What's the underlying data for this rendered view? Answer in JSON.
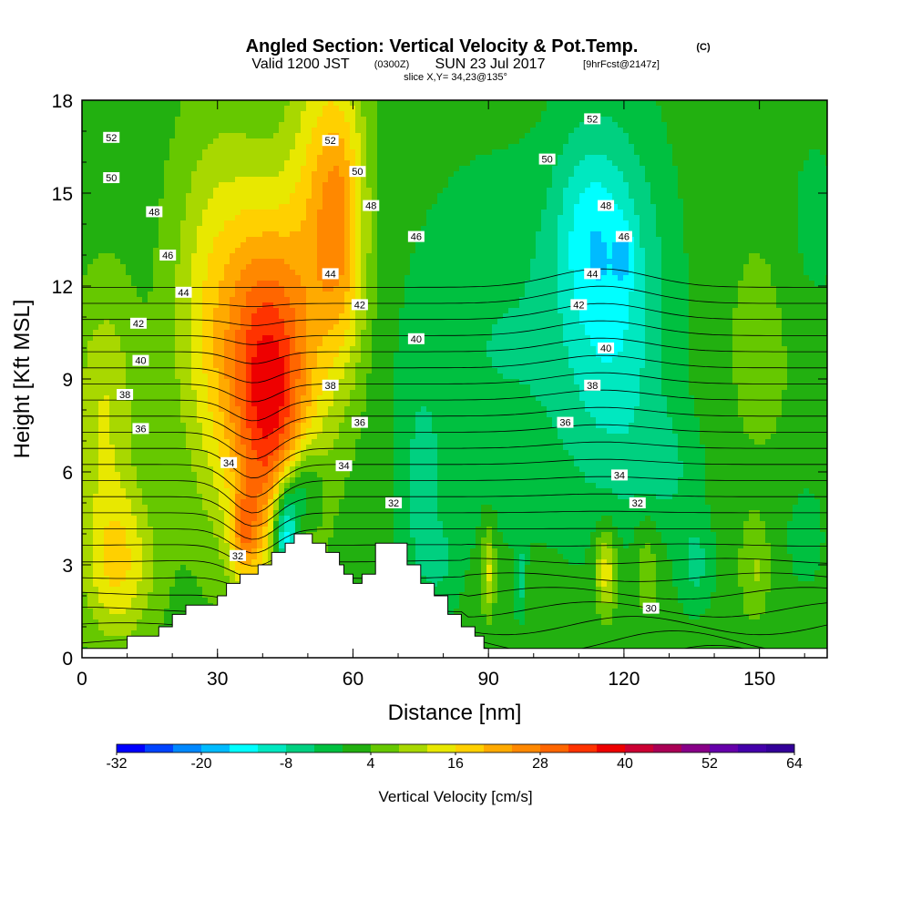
{
  "header": {
    "title": "Angled Section: Vertical Velocity & Pot.Temp.",
    "title_unit": "(C)",
    "valid_prefix": "Valid 1200 JST",
    "valid_utc": "(0300Z)",
    "valid_date": "SUN 23 Jul 2017",
    "forecast_tag": "[9hrFcst@2147z]",
    "slice": "slice X,Y= 34,23@135°"
  },
  "chart_data": {
    "type": "heatmap",
    "xlabel": "Distance [nm]",
    "ylabel": "Height [Kft MSL]",
    "xlim": [
      0,
      165
    ],
    "ylim": [
      0,
      18
    ],
    "x_ticks": [
      0,
      30,
      60,
      90,
      120,
      150
    ],
    "y_ticks": [
      0,
      3,
      6,
      9,
      12,
      15,
      18
    ],
    "colorbar": {
      "title": "Vertical Velocity [cm/s]",
      "min": -32,
      "max": 64,
      "step": 4,
      "tick_labels": [
        -32,
        -20,
        -8,
        4,
        16,
        28,
        40,
        52,
        64
      ],
      "colors": [
        "#0000ff",
        "#0044ff",
        "#0088ff",
        "#00bbff",
        "#00ffff",
        "#00e8c0",
        "#00d080",
        "#00c040",
        "#22b010",
        "#66c800",
        "#a8d800",
        "#e8e800",
        "#ffd000",
        "#ffaa00",
        "#ff8800",
        "#ff6600",
        "#ff3300",
        "#ee0000",
        "#cc0033",
        "#aa0055",
        "#880088",
        "#6600aa",
        "#4400aa",
        "#330099"
      ]
    },
    "terrain_top_kft": [
      [
        0,
        0.3
      ],
      [
        10,
        0.3
      ],
      [
        10,
        0.7
      ],
      [
        17,
        0.7
      ],
      [
        17,
        1.0
      ],
      [
        20,
        1.0
      ],
      [
        20,
        1.4
      ],
      [
        23,
        1.4
      ],
      [
        23,
        1.7
      ],
      [
        30,
        1.7
      ],
      [
        30,
        2.0
      ],
      [
        32,
        2.0
      ],
      [
        32,
        2.4
      ],
      [
        35,
        2.4
      ],
      [
        35,
        2.7
      ],
      [
        39,
        2.7
      ],
      [
        39,
        3.0
      ],
      [
        42,
        3.0
      ],
      [
        42,
        3.4
      ],
      [
        45,
        3.4
      ],
      [
        45,
        3.7
      ],
      [
        47,
        3.7
      ],
      [
        47,
        4.0
      ],
      [
        51,
        4.0
      ],
      [
        51,
        3.7
      ],
      [
        54,
        3.7
      ],
      [
        54,
        3.4
      ],
      [
        57,
        3.4
      ],
      [
        57,
        3.0
      ],
      [
        58,
        3.0
      ],
      [
        58,
        2.7
      ],
      [
        60,
        2.7
      ],
      [
        60,
        2.4
      ],
      [
        62,
        2.4
      ],
      [
        62,
        2.7
      ],
      [
        65,
        2.7
      ],
      [
        65,
        3.7
      ],
      [
        72,
        3.7
      ],
      [
        72,
        3.0
      ],
      [
        75,
        3.0
      ],
      [
        75,
        2.4
      ],
      [
        78,
        2.4
      ],
      [
        78,
        2.0
      ],
      [
        81,
        2.0
      ],
      [
        81,
        1.4
      ],
      [
        84,
        1.4
      ],
      [
        84,
        1.0
      ],
      [
        87,
        1.0
      ],
      [
        87,
        0.7
      ],
      [
        89,
        0.7
      ],
      [
        89,
        0.3
      ],
      [
        165,
        0.3
      ]
    ],
    "w_features": [
      {
        "x": 42,
        "y": 8.5,
        "sx": 9,
        "sy": 5.5,
        "w": 34
      },
      {
        "x": 30,
        "y": 11,
        "sx": 10,
        "sy": 6,
        "w": 14
      },
      {
        "x": 57,
        "y": 14,
        "sx": 6,
        "sy": 5,
        "w": 22
      },
      {
        "x": 50,
        "y": 15,
        "sx": 6,
        "sy": 6,
        "w": 8
      },
      {
        "x": 8,
        "y": 3,
        "sx": 8,
        "sy": 2.5,
        "w": 14
      },
      {
        "x": 5,
        "y": 8,
        "sx": 7,
        "sy": 4,
        "w": 10
      },
      {
        "x": 36,
        "y": 4,
        "sx": 3,
        "sy": 1.5,
        "w": 14
      },
      {
        "x": 45,
        "y": 4,
        "sx": 3,
        "sy": 1.8,
        "w": -28
      },
      {
        "x": 49,
        "y": 5.5,
        "sx": 4,
        "sy": 1.5,
        "w": -14
      },
      {
        "x": 118,
        "y": 11,
        "sx": 12,
        "sy": 6,
        "w": -13
      },
      {
        "x": 112,
        "y": 14,
        "sx": 8,
        "sy": 3,
        "w": -8
      },
      {
        "x": 120,
        "y": 13,
        "sx": 2,
        "sy": 1,
        "w": -6
      },
      {
        "x": 92,
        "y": 10,
        "sx": 20,
        "sy": 6,
        "w": -6
      },
      {
        "x": 75,
        "y": 5,
        "sx": 5,
        "sy": 4,
        "w": -6
      },
      {
        "x": 90,
        "y": 2.8,
        "sx": 1.5,
        "sy": 1.4,
        "w": 12
      },
      {
        "x": 97,
        "y": 2.5,
        "sx": 1,
        "sy": 1.2,
        "w": -8
      },
      {
        "x": 116,
        "y": 2.8,
        "sx": 2.5,
        "sy": 1.4,
        "w": 14
      },
      {
        "x": 125,
        "y": 3,
        "sx": 3,
        "sy": 1.8,
        "w": 6
      },
      {
        "x": 136,
        "y": 3,
        "sx": 4,
        "sy": 1.5,
        "w": -7
      },
      {
        "x": 149,
        "y": 2.8,
        "sx": 3,
        "sy": 1.5,
        "w": 6
      },
      {
        "x": 160,
        "y": 4,
        "sx": 5,
        "sy": 2,
        "w": -4
      },
      {
        "x": 130,
        "y": 6,
        "sx": 8,
        "sy": 2,
        "w": -5
      },
      {
        "x": 150,
        "y": 10,
        "sx": 10,
        "sy": 5,
        "w": 3
      },
      {
        "x": 80,
        "y": 3,
        "sx": 4,
        "sy": 1.5,
        "w": -4
      },
      {
        "x": 162,
        "y": 14,
        "sx": 6,
        "sy": 3,
        "w": -4
      }
    ],
    "w_background": 2,
    "theta_levels": [
      30,
      31,
      32,
      33,
      34,
      35,
      36,
      37,
      38,
      39,
      40,
      41,
      42,
      43,
      44,
      45,
      46,
      47,
      48,
      49,
      50,
      51,
      52,
      53
    ],
    "theta_labels": [
      {
        "text": "52",
        "x": 6.5,
        "y": 16.8
      },
      {
        "text": "50",
        "x": 6.5,
        "y": 15.5
      },
      {
        "text": "48",
        "x": 16,
        "y": 14.4
      },
      {
        "text": "46",
        "x": 19,
        "y": 13.0
      },
      {
        "text": "44",
        "x": 22.5,
        "y": 11.8
      },
      {
        "text": "42",
        "x": 12.5,
        "y": 10.8
      },
      {
        "text": "40",
        "x": 13,
        "y": 9.6
      },
      {
        "text": "38",
        "x": 9.5,
        "y": 8.5
      },
      {
        "text": "36",
        "x": 13,
        "y": 7.4
      },
      {
        "text": "34",
        "x": 32.5,
        "y": 6.3
      },
      {
        "text": "32",
        "x": 34.5,
        "y": 3.3
      },
      {
        "text": "52",
        "x": 55,
        "y": 16.7
      },
      {
        "text": "50",
        "x": 61,
        "y": 15.7
      },
      {
        "text": "48",
        "x": 64,
        "y": 14.6
      },
      {
        "text": "46",
        "x": 74,
        "y": 13.6
      },
      {
        "text": "44",
        "x": 55,
        "y": 12.4
      },
      {
        "text": "42",
        "x": 61.5,
        "y": 11.4
      },
      {
        "text": "40",
        "x": 74,
        "y": 10.3
      },
      {
        "text": "38",
        "x": 55,
        "y": 8.8
      },
      {
        "text": "36",
        "x": 61.5,
        "y": 7.6
      },
      {
        "text": "34",
        "x": 58,
        "y": 6.2
      },
      {
        "text": "32",
        "x": 69,
        "y": 5.0
      },
      {
        "text": "52",
        "x": 113,
        "y": 17.4
      },
      {
        "text": "50",
        "x": 103,
        "y": 16.1
      },
      {
        "text": "48",
        "x": 116,
        "y": 14.6
      },
      {
        "text": "46",
        "x": 120,
        "y": 13.6
      },
      {
        "text": "44",
        "x": 113,
        "y": 12.4
      },
      {
        "text": "42",
        "x": 110,
        "y": 11.4
      },
      {
        "text": "40",
        "x": 116,
        "y": 10.0
      },
      {
        "text": "38",
        "x": 113,
        "y": 8.8
      },
      {
        "text": "36",
        "x": 107,
        "y": 7.6
      },
      {
        "text": "34",
        "x": 119,
        "y": 5.9
      },
      {
        "text": "32",
        "x": 123,
        "y": 5.0
      },
      {
        "text": "30",
        "x": 126,
        "y": 1.6
      }
    ]
  }
}
